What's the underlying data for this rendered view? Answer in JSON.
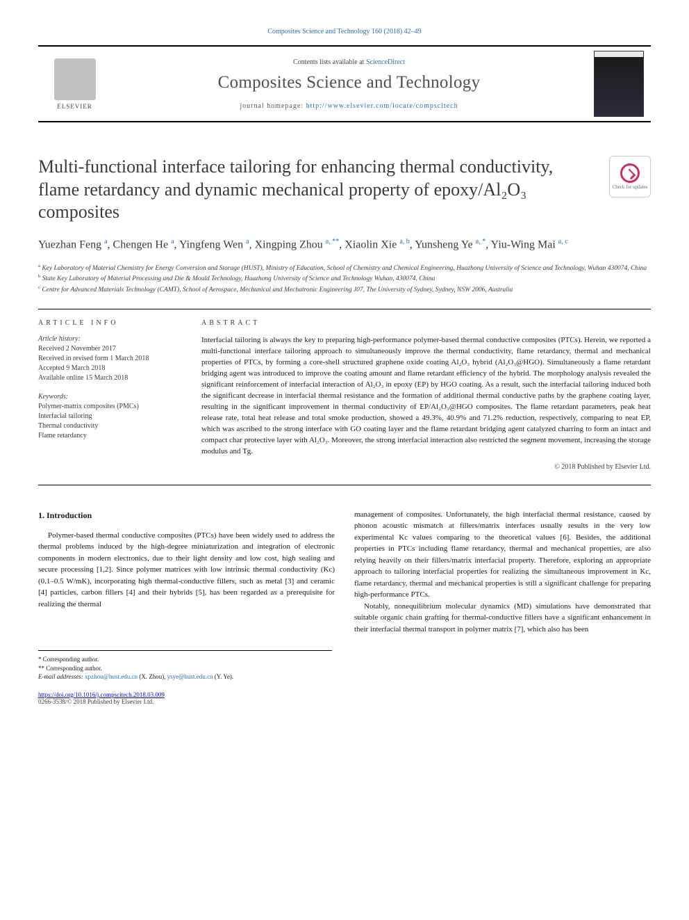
{
  "top_citation": "Composites Science and Technology 160 (2018) 42–49",
  "header": {
    "contents_prefix": "Contents lists available at ",
    "contents_link": "ScienceDirect",
    "journal": "Composites Science and Technology",
    "homepage_label": "journal homepage: ",
    "homepage_url": "http://www.elsevier.com/locate/compscitech",
    "publisher": "ELSEVIER"
  },
  "check_updates": "Check for updates",
  "title": "Multi-functional interface tailoring for enhancing thermal conductivity, flame retardancy and dynamic mechanical property of epoxy/Al₂O₃ composites",
  "authors_html": "Yuezhan Feng <sup>a</sup>, Chengen He <sup>a</sup>, Yingfeng Wen <sup>a</sup>, Xingping Zhou <sup>a, **</sup>, Xiaolin Xie <sup>a, b</sup>, Yunsheng Ye <sup>a, *</sup>, Yiu-Wing Mai <sup>a, c</sup>",
  "affiliations": {
    "a": "Key Laboratory of Material Chemistry for Energy Conversion and Storage (HUST), Ministry of Education, School of Chemistry and Chemical Engineering, Huazhong University of Science and Technology, Wuhan 430074, China",
    "b": "State Key Laboratory of Material Processing and Die & Mould Technology, Huazhong University of Science and Technology Wuhan, 430074, China",
    "c": "Centre for Advanced Materials Technology (CAMT), School of Aerospace, Mechanical and Mechatronic Engineering J07, The University of Sydney, Sydney, NSW 2006, Australia"
  },
  "info_label": "ARTICLE INFO",
  "abstract_label": "ABSTRACT",
  "history": {
    "label": "Article history:",
    "received": "Received 2 November 2017",
    "revised": "Received in revised form 1 March 2018",
    "accepted": "Accepted 9 March 2018",
    "online": "Available online 15 March 2018"
  },
  "keywords": {
    "label": "Keywords:",
    "items": [
      "Polymer-matrix composites (PMCs)",
      "Interfacial tailoring",
      "Thermal conductivity",
      "Flame retardancy"
    ]
  },
  "abstract": "Interfacial tailoring is always the key to preparing high-performance polymer-based thermal conductive composites (PTCs). Herein, we reported a multi-functional interface tailoring approach to simultaneously improve the thermal conductivity, flame retardancy, thermal and mechanical properties of PTCs, by forming a core-shell structured graphene oxide coating Al₂O₃ hybrid (Al₂O₃@HGO). Simultaneously a flame retardant bridging agent was introduced to improve the coating amount and flame retardant efficiency of the hybrid. The morphology analysis revealed the significant reinforcement of interfacial interaction of Al₂O₃ in epoxy (EP) by HGO coating. As a result, such the interfacial tailoring induced both the significant decrease in interfacial thermal resistance and the formation of additional thermal conductive paths by the graphene coating layer, resulting in the significant improvement in thermal conductivity of EP/Al₂O₃@HGO composites. The flame retardant parameters, peak heat release rate, total heat release and total smoke production, showed a 49.3%, 40.9% and 71.2% reduction, respectively, comparing to neat EP, which was ascribed to the strong interface with GO coating layer and the flame retardant bridging agent catalyzed charring to form an intact and compact char protective layer with Al₂O₃. Moreover, the strong interfacial interaction also restricted the segment movement, increasing the storage modulus and Tg.",
  "copyright": "© 2018 Published by Elsevier Ltd.",
  "body": {
    "h1": "1. Introduction",
    "p1": "Polymer-based thermal conductive composites (PTCs) have been widely used to address the thermal problems induced by the high-degree miniaturization and integration of electronic components in modern electronics, due to their light density and low cost, high sealing and secure processing [1,2]. Since polymer matrices with low intrinsic thermal conductivity (Kc) (0.1–0.5 W/mK), incorporating high thermal-conductive fillers, such as metal [3] and ceramic [4] particles, carbon fillers [4] and their hybrids [5], has been regarded as a prerequisite for realizing the thermal",
    "p2": "management of composites. Unfortunately, the high interfacial thermal resistance, caused by phonon acoustic mismatch at fillers/matrix interfaces usually results in the very low experimental Kc values comparing to the theoretical values [6]. Besides, the additional properties in PTCs including flame retardancy, thermal and mechanical properties, are also relying heavily on their fillers/matrix interfacial property. Therefore, exploring an appropriate approach to tailoring interfacial properties for realizing the simultaneous improvement in Kc, flame retardancy, thermal and mechanical properties is still a significant challenge for preparing high-performance PTCs.",
    "p3": "Notably, nonequilibrium molecular dynamics (MD) simulations have demonstrated that suitable organic chain grafting for thermal-conductive fillers have a significant enhancement in their interfacial thermal transport in polymer matrix [7], which also has been"
  },
  "footnotes": {
    "star": "* Corresponding author.",
    "dstar": "** Corresponding author.",
    "emails_label": "E-mail addresses: ",
    "email1": "xpzhou@hust.edu.cn",
    "email1_who": " (X. Zhou), ",
    "email2": "ysye@hust.edu.cn",
    "email2_who": " (Y. Ye)."
  },
  "doi": "https://doi.org/10.1016/j.compscitech.2018.03.009",
  "issn": "0266-3538/© 2018 Published by Elsevier Ltd.",
  "colors": {
    "link": "#2a6fb5",
    "text": "#1a1a1a",
    "muted": "#3a3a3a",
    "accent": "#d0295f"
  }
}
